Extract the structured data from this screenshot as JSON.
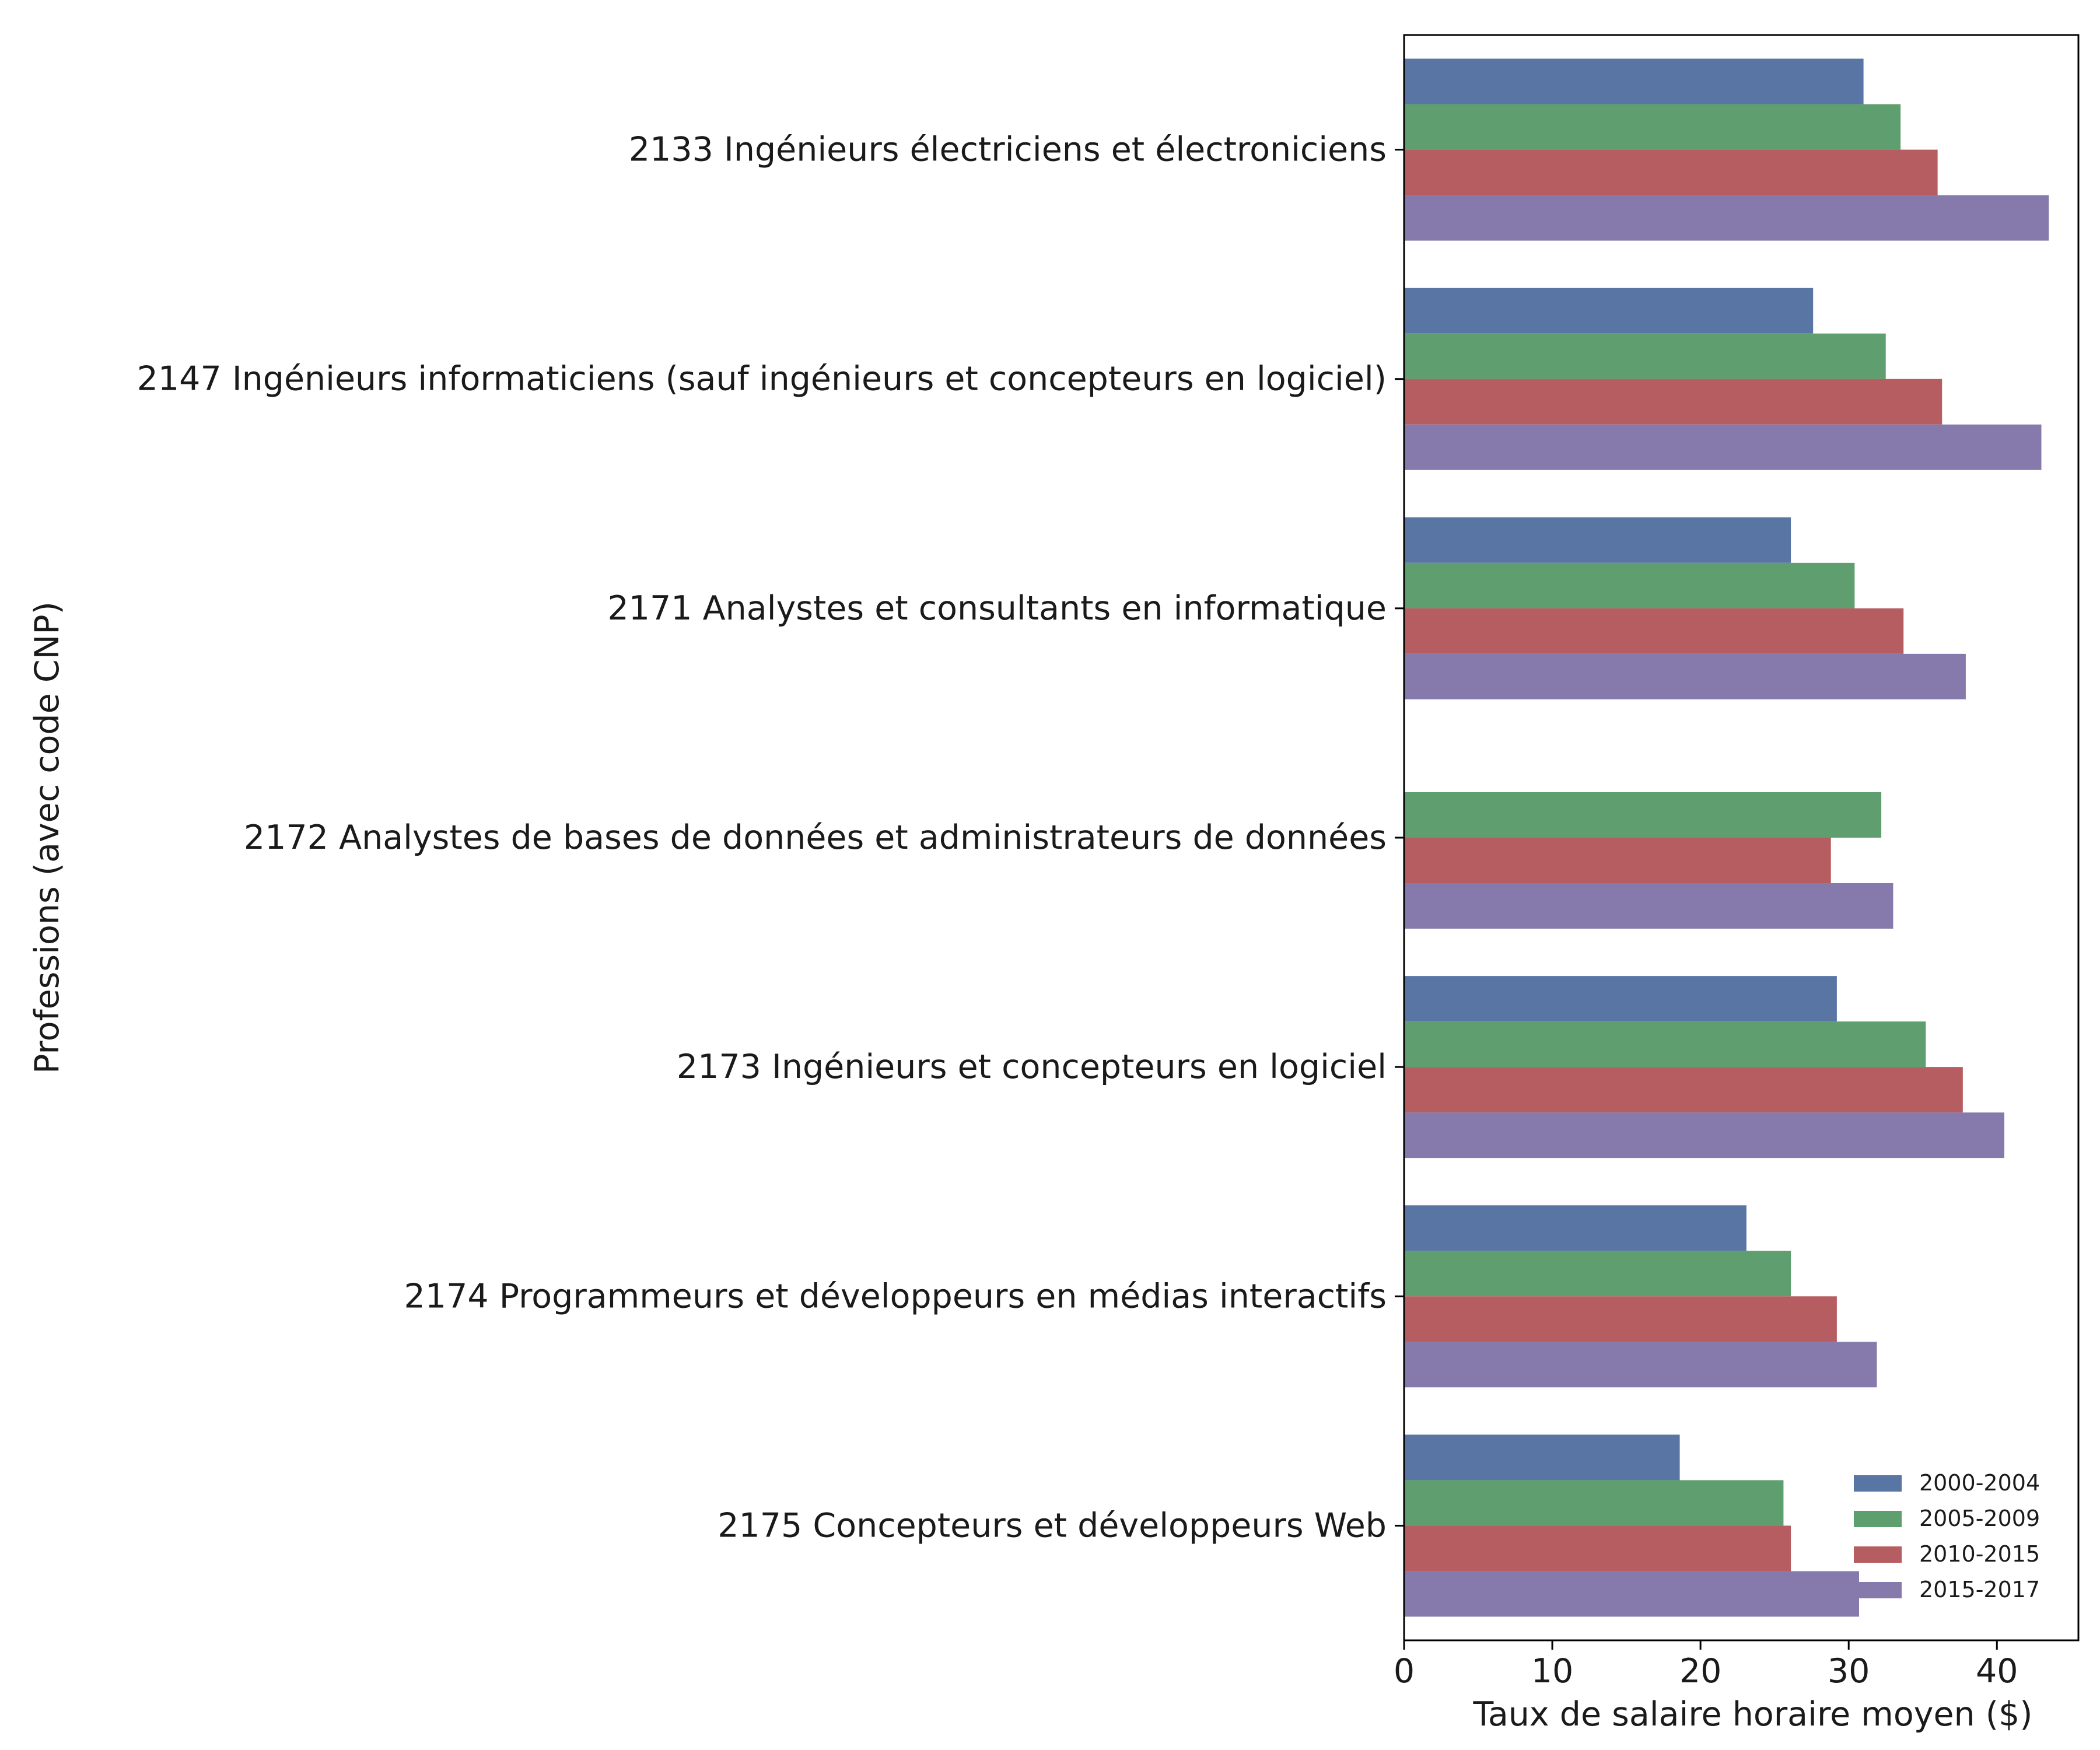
{
  "chart_data": {
    "type": "bar",
    "orientation": "horizontal",
    "title": "",
    "xlabel": "Taux de salaire horaire moyen ($)",
    "ylabel": "Professions (avec code CNP)",
    "xlim": [
      0,
      45.5
    ],
    "xticks": [
      "0",
      "10",
      "20",
      "30",
      "40"
    ],
    "grid": false,
    "legend_position": "lower-right",
    "categories": [
      "2133 Ingénieurs électriciens et électroniciens",
      "2147 Ingénieurs informaticiens (sauf ingénieurs et concepteurs en logiciel)",
      "2171 Analystes et consultants en informatique",
      "2172 Analystes de bases de données et administrateurs de données",
      "2173 Ingénieurs et concepteurs en logiciel",
      "2174 Programmeurs et développeurs en médias interactifs",
      "2175 Concepteurs et développeurs Web"
    ],
    "series": [
      {
        "name": "2000-2004",
        "color": "#5875a4",
        "values": [
          31.0,
          27.6,
          26.1,
          null,
          29.2,
          23.1,
          18.6
        ]
      },
      {
        "name": "2005-2009",
        "color": "#5f9e6e",
        "values": [
          33.5,
          32.5,
          30.4,
          32.2,
          35.2,
          26.1,
          25.6
        ]
      },
      {
        "name": "2010-2015",
        "color": "#b55d60",
        "values": [
          36.0,
          36.3,
          33.7,
          28.8,
          37.7,
          29.2,
          26.1
        ]
      },
      {
        "name": "2015-2017",
        "color": "#857aab",
        "values": [
          43.5,
          43.0,
          37.9,
          33.0,
          40.5,
          31.9,
          30.7
        ]
      }
    ]
  }
}
